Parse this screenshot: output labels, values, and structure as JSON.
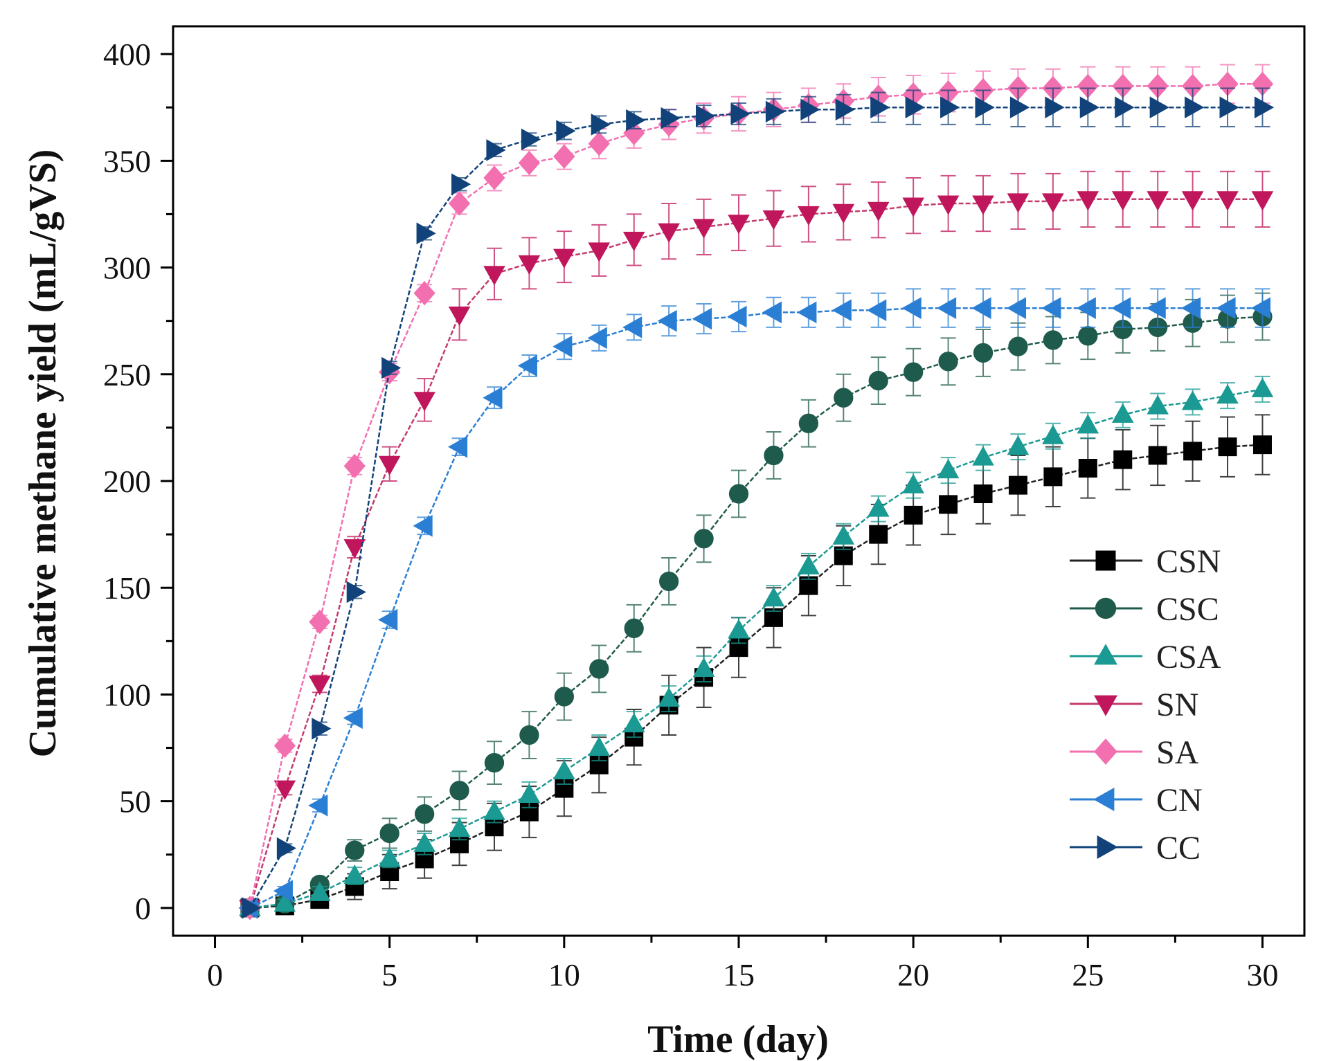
{
  "chart_data": {
    "type": "line",
    "title": "",
    "xlabel": "Time (day)",
    "ylabel": "Cumulative methane yield (mL/gVS)",
    "xlim": [
      -1.2,
      31.2
    ],
    "ylim": [
      -13,
      413
    ],
    "xticks": [
      0,
      5,
      10,
      15,
      20,
      25,
      30
    ],
    "yticks": [
      0,
      50,
      100,
      150,
      200,
      250,
      300,
      350,
      400
    ],
    "grid": false,
    "legend_position": "bottom-right",
    "series": [
      {
        "name": "CSN",
        "marker": "square",
        "color": "#000000",
        "line_color": "#222222",
        "x": [
          1,
          2,
          3,
          4,
          5,
          6,
          7,
          8,
          9,
          10,
          11,
          12,
          13,
          14,
          15,
          16,
          17,
          18,
          19,
          20,
          21,
          22,
          23,
          24,
          25,
          26,
          27,
          28,
          29,
          30
        ],
        "y": [
          0,
          1,
          4,
          10,
          17,
          23,
          30,
          38,
          45,
          56,
          67,
          80,
          95,
          108,
          122,
          136,
          151,
          165,
          175,
          184,
          189,
          194,
          198,
          202,
          206,
          210,
          212,
          214,
          216,
          217
        ],
        "err": [
          0,
          2,
          4,
          6,
          8,
          9,
          10,
          11,
          12,
          13,
          13,
          13,
          14,
          14,
          14,
          14,
          14,
          14,
          14,
          14,
          14,
          14,
          14,
          14,
          14,
          14,
          14,
          14,
          14,
          14
        ]
      },
      {
        "name": "CSC",
        "marker": "circle",
        "color": "#1f5b4c",
        "line_color": "#1f5b4c",
        "x": [
          1,
          2,
          3,
          4,
          5,
          6,
          7,
          8,
          9,
          10,
          11,
          12,
          13,
          14,
          15,
          16,
          17,
          18,
          19,
          20,
          21,
          22,
          23,
          24,
          25,
          26,
          27,
          28,
          29,
          30
        ],
        "y": [
          0,
          2,
          11,
          27,
          35,
          44,
          55,
          68,
          81,
          99,
          112,
          131,
          153,
          173,
          194,
          212,
          227,
          239,
          247,
          251,
          256,
          260,
          263,
          266,
          268,
          271,
          272,
          274,
          276,
          277
        ],
        "err": [
          0,
          2,
          3,
          5,
          7,
          8,
          9,
          10,
          11,
          11,
          11,
          11,
          11,
          11,
          11,
          11,
          11,
          11,
          11,
          11,
          11,
          11,
          11,
          11,
          11,
          11,
          11,
          11,
          11,
          11
        ]
      },
      {
        "name": "CSA",
        "marker": "triangle-up",
        "color": "#1a9a92",
        "line_color": "#1a9a92",
        "x": [
          1,
          2,
          3,
          4,
          5,
          6,
          7,
          8,
          9,
          10,
          11,
          12,
          13,
          14,
          15,
          16,
          17,
          18,
          19,
          20,
          21,
          22,
          23,
          24,
          25,
          26,
          27,
          28,
          29,
          30
        ],
        "y": [
          0,
          2,
          7,
          15,
          23,
          30,
          37,
          45,
          53,
          64,
          75,
          86,
          98,
          112,
          130,
          145,
          160,
          174,
          187,
          198,
          205,
          211,
          216,
          221,
          226,
          231,
          235,
          237,
          240,
          243
        ],
        "err": [
          0,
          2,
          3,
          4,
          4,
          5,
          5,
          5,
          6,
          6,
          6,
          6,
          6,
          6,
          6,
          6,
          6,
          6,
          6,
          6,
          6,
          6,
          6,
          6,
          6,
          6,
          6,
          6,
          6,
          6
        ]
      },
      {
        "name": "SN",
        "marker": "triangle-down",
        "color": "#c0175c",
        "line_color": "#c43b6e",
        "x": [
          1,
          2,
          3,
          4,
          5,
          6,
          7,
          8,
          9,
          10,
          11,
          12,
          13,
          14,
          15,
          16,
          17,
          18,
          19,
          20,
          21,
          22,
          23,
          24,
          25,
          26,
          27,
          28,
          29,
          30
        ],
        "y": [
          0,
          56,
          105,
          169,
          208,
          238,
          278,
          297,
          302,
          305,
          308,
          313,
          317,
          319,
          321,
          323,
          325,
          326,
          327,
          329,
          330,
          330,
          331,
          331,
          332,
          332,
          332,
          332,
          332,
          332
        ],
        "err": [
          0,
          3,
          4,
          5,
          8,
          10,
          12,
          12,
          12,
          12,
          12,
          12,
          13,
          13,
          13,
          13,
          13,
          13,
          13,
          13,
          13,
          13,
          13,
          13,
          13,
          13,
          13,
          13,
          13,
          13
        ]
      },
      {
        "name": "SA",
        "marker": "diamond",
        "color": "#f26fb0",
        "line_color": "#f26fb0",
        "x": [
          1,
          2,
          3,
          4,
          5,
          6,
          7,
          8,
          9,
          10,
          11,
          12,
          13,
          14,
          15,
          16,
          17,
          18,
          19,
          20,
          21,
          22,
          23,
          24,
          25,
          26,
          27,
          28,
          29,
          30
        ],
        "y": [
          0,
          76,
          134,
          207,
          251,
          288,
          330,
          342,
          349,
          352,
          358,
          363,
          367,
          370,
          372,
          374,
          376,
          378,
          380,
          381,
          382,
          383,
          384,
          384,
          385,
          385,
          385,
          385,
          386,
          386
        ],
        "err": [
          0,
          3,
          3,
          4,
          4,
          4,
          5,
          6,
          6,
          6,
          7,
          7,
          7,
          7,
          8,
          8,
          8,
          8,
          9,
          9,
          9,
          9,
          9,
          9,
          9,
          9,
          9,
          9,
          9,
          9
        ]
      },
      {
        "name": "CN",
        "marker": "triangle-left",
        "color": "#2a7fd4",
        "line_color": "#2a7fd4",
        "x": [
          1,
          2,
          3,
          4,
          5,
          6,
          7,
          8,
          9,
          10,
          11,
          12,
          13,
          14,
          15,
          16,
          17,
          18,
          19,
          20,
          21,
          22,
          23,
          24,
          25,
          26,
          27,
          28,
          29,
          30
        ],
        "y": [
          0,
          8,
          48,
          89,
          135,
          179,
          216,
          239,
          254,
          263,
          267,
          272,
          275,
          276,
          277,
          279,
          279,
          280,
          280,
          281,
          281,
          281,
          281,
          281,
          281,
          281,
          281,
          281,
          281,
          281
        ],
        "err": [
          0,
          2,
          3,
          3,
          4,
          4,
          4,
          5,
          5,
          6,
          6,
          6,
          7,
          7,
          7,
          7,
          7,
          8,
          8,
          9,
          9,
          9,
          9,
          9,
          9,
          9,
          9,
          9,
          9,
          9
        ]
      },
      {
        "name": "CC",
        "marker": "triangle-right",
        "color": "#12427a",
        "line_color": "#12427a",
        "x": [
          1,
          2,
          3,
          4,
          5,
          6,
          7,
          8,
          9,
          10,
          11,
          12,
          13,
          14,
          15,
          16,
          17,
          18,
          19,
          20,
          21,
          22,
          23,
          24,
          25,
          26,
          27,
          28,
          29,
          30
        ],
        "y": [
          0,
          28,
          84,
          148,
          253,
          316,
          339,
          355,
          360,
          364,
          367,
          369,
          370,
          371,
          372,
          373,
          374,
          374,
          375,
          375,
          375,
          375,
          375,
          375,
          375,
          375,
          375,
          375,
          375,
          375
        ],
        "err": [
          0,
          2,
          3,
          3,
          3,
          3,
          3,
          3,
          3,
          4,
          4,
          4,
          4,
          5,
          5,
          6,
          6,
          7,
          7,
          8,
          8,
          8,
          9,
          9,
          9,
          9,
          9,
          9,
          9,
          9
        ]
      }
    ]
  }
}
